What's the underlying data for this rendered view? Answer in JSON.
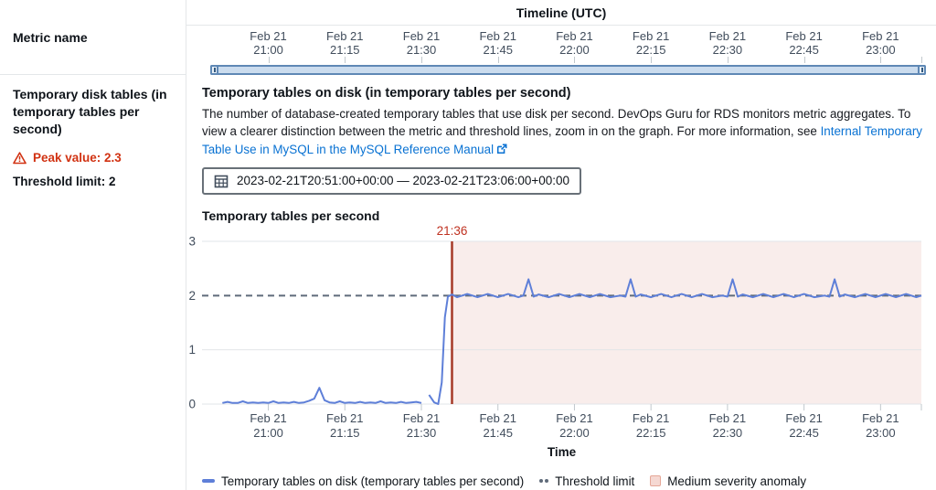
{
  "header": {
    "metric_name_label": "Metric name",
    "timeline_title": "Timeline (UTC)"
  },
  "sidebar": {
    "metric_title": "Temporary disk tables (in temporary tables per second)",
    "peak_label": "Peak value: 2.3",
    "threshold_label": "Threshold limit: 2"
  },
  "main": {
    "title": "Temporary tables on disk (in temporary tables per second)",
    "description_before_link": "The number of database-created temporary tables that use disk per second. DevOps Guru for RDS monitors metric aggregates. To view a clearer distinction between the metric and threshold lines, zoom in on the graph. For more information, see ",
    "link_text": "Internal Temporary Table Use in MySQL in the MySQL Reference Manual",
    "date_range": "2023-02-21T20:51:00+00:00 — 2023-02-21T23:06:00+00:00"
  },
  "legend": {
    "items": [
      {
        "label": "Temporary tables on disk (temporary tables per second)",
        "swatch": "blue-line"
      },
      {
        "label": "Threshold limit",
        "swatch": "gray-dots"
      },
      {
        "label": "Medium severity anomaly",
        "swatch": "pink-box"
      }
    ]
  },
  "colors": {
    "series_blue": "#5e7fd8",
    "threshold_gray": "#5f6b7a",
    "gridline": "#e2e5e8",
    "tick": "#c1c8cd",
    "axis_text": "#414d5c",
    "anomaly_fill": "#f9edeb",
    "anomaly_line": "#a63a28",
    "anomaly_label": "#bf3120",
    "peak_red": "#d13212",
    "link_blue": "#0972d3",
    "legend_pink_fill": "#f5d8d2",
    "legend_pink_border": "#e5a797"
  },
  "chart_data": {
    "type": "line",
    "title": "Temporary tables per second",
    "xlabel": "Time",
    "ylabel": "Temporary tables per second",
    "ylim": [
      0,
      3
    ],
    "yticks": [
      0,
      1,
      2,
      3
    ],
    "x_minutes_range": [
      -13,
      128
    ],
    "x_origin_label": "minutes after Feb 21 21:00 UTC",
    "xticks": [
      {
        "t": 0,
        "date": "Feb 21",
        "time": "21:00"
      },
      {
        "t": 15,
        "date": "Feb 21",
        "time": "21:15"
      },
      {
        "t": 30,
        "date": "Feb 21",
        "time": "21:30"
      },
      {
        "t": 45,
        "date": "Feb 21",
        "time": "21:45"
      },
      {
        "t": 60,
        "date": "Feb 21",
        "time": "22:00"
      },
      {
        "t": 75,
        "date": "Feb 21",
        "time": "22:15"
      },
      {
        "t": 90,
        "date": "Feb 21",
        "time": "22:30"
      },
      {
        "t": 105,
        "date": "Feb 21",
        "time": "22:45"
      },
      {
        "t": 120,
        "date": "Feb 21",
        "time": "23:00"
      }
    ],
    "threshold_value": 2,
    "anomaly": {
      "start_t": 36,
      "label": "21:36",
      "severity": "medium"
    },
    "series": [
      {
        "name": "Temporary tables on disk (temporary tables per second)",
        "segments": [
          [
            [
              -9,
              0.02
            ],
            [
              -8,
              0.04
            ],
            [
              -7,
              0.02
            ],
            [
              -6,
              0.02
            ],
            [
              -5,
              0.05
            ],
            [
              -4,
              0.02
            ],
            [
              -3,
              0.03
            ],
            [
              -2,
              0.02
            ],
            [
              -1,
              0.03
            ],
            [
              0,
              0.02
            ],
            [
              1,
              0.05
            ],
            [
              2,
              0.02
            ],
            [
              3,
              0.03
            ],
            [
              4,
              0.02
            ],
            [
              5,
              0.04
            ],
            [
              6,
              0.02
            ],
            [
              7,
              0.03
            ],
            [
              8,
              0.06
            ],
            [
              9,
              0.1
            ],
            [
              10,
              0.3
            ],
            [
              11,
              0.07
            ],
            [
              12,
              0.03
            ],
            [
              13,
              0.02
            ],
            [
              14,
              0.05
            ],
            [
              15,
              0.02
            ],
            [
              16,
              0.03
            ],
            [
              17,
              0.02
            ],
            [
              18,
              0.04
            ],
            [
              19,
              0.02
            ],
            [
              20,
              0.03
            ],
            [
              21,
              0.02
            ],
            [
              22,
              0.05
            ],
            [
              23,
              0.02
            ],
            [
              24,
              0.03
            ],
            [
              25,
              0.02
            ],
            [
              26,
              0.04
            ],
            [
              27,
              0.02
            ],
            [
              28,
              0.03
            ],
            [
              29,
              0.04
            ],
            [
              30,
              0.02
            ]
          ],
          [
            [
              31.5,
              0.17
            ],
            [
              32.5,
              0.03
            ],
            [
              33.3,
              0
            ],
            [
              34,
              0.4
            ],
            [
              34.6,
              1.6
            ],
            [
              35.2,
              1.98
            ],
            [
              36,
              2.02
            ],
            [
              37,
              1.97
            ],
            [
              39,
              2.03
            ],
            [
              41,
              1.97
            ],
            [
              43,
              2.03
            ],
            [
              45,
              1.97
            ],
            [
              47,
              2.03
            ],
            [
              49,
              1.97
            ],
            [
              50,
              2.0
            ],
            [
              51,
              2.3
            ],
            [
              52,
              1.98
            ],
            [
              53,
              2.02
            ],
            [
              55,
              1.97
            ],
            [
              57,
              2.03
            ],
            [
              59,
              1.97
            ],
            [
              61,
              2.03
            ],
            [
              63,
              1.97
            ],
            [
              65,
              2.03
            ],
            [
              67,
              1.97
            ],
            [
              69,
              2.0
            ],
            [
              70,
              1.98
            ],
            [
              71,
              2.3
            ],
            [
              72,
              1.98
            ],
            [
              73,
              2.02
            ],
            [
              75,
              1.97
            ],
            [
              77,
              2.03
            ],
            [
              79,
              1.97
            ],
            [
              81,
              2.03
            ],
            [
              83,
              1.97
            ],
            [
              85,
              2.03
            ],
            [
              87,
              1.97
            ],
            [
              89,
              2.0
            ],
            [
              90,
              1.98
            ],
            [
              91,
              2.3
            ],
            [
              92,
              1.98
            ],
            [
              93,
              2.02
            ],
            [
              95,
              1.97
            ],
            [
              97,
              2.03
            ],
            [
              99,
              1.97
            ],
            [
              101,
              2.03
            ],
            [
              103,
              1.97
            ],
            [
              105,
              2.03
            ],
            [
              107,
              1.97
            ],
            [
              109,
              2.0
            ],
            [
              110,
              1.98
            ],
            [
              111,
              2.3
            ],
            [
              112,
              1.98
            ],
            [
              113,
              2.02
            ],
            [
              115,
              1.97
            ],
            [
              117,
              2.03
            ],
            [
              119,
              1.97
            ],
            [
              121,
              2.03
            ],
            [
              123,
              1.97
            ],
            [
              125,
              2.03
            ],
            [
              127,
              1.97
            ],
            [
              128,
              2.0
            ]
          ]
        ]
      }
    ],
    "peak_value": 2.3
  }
}
